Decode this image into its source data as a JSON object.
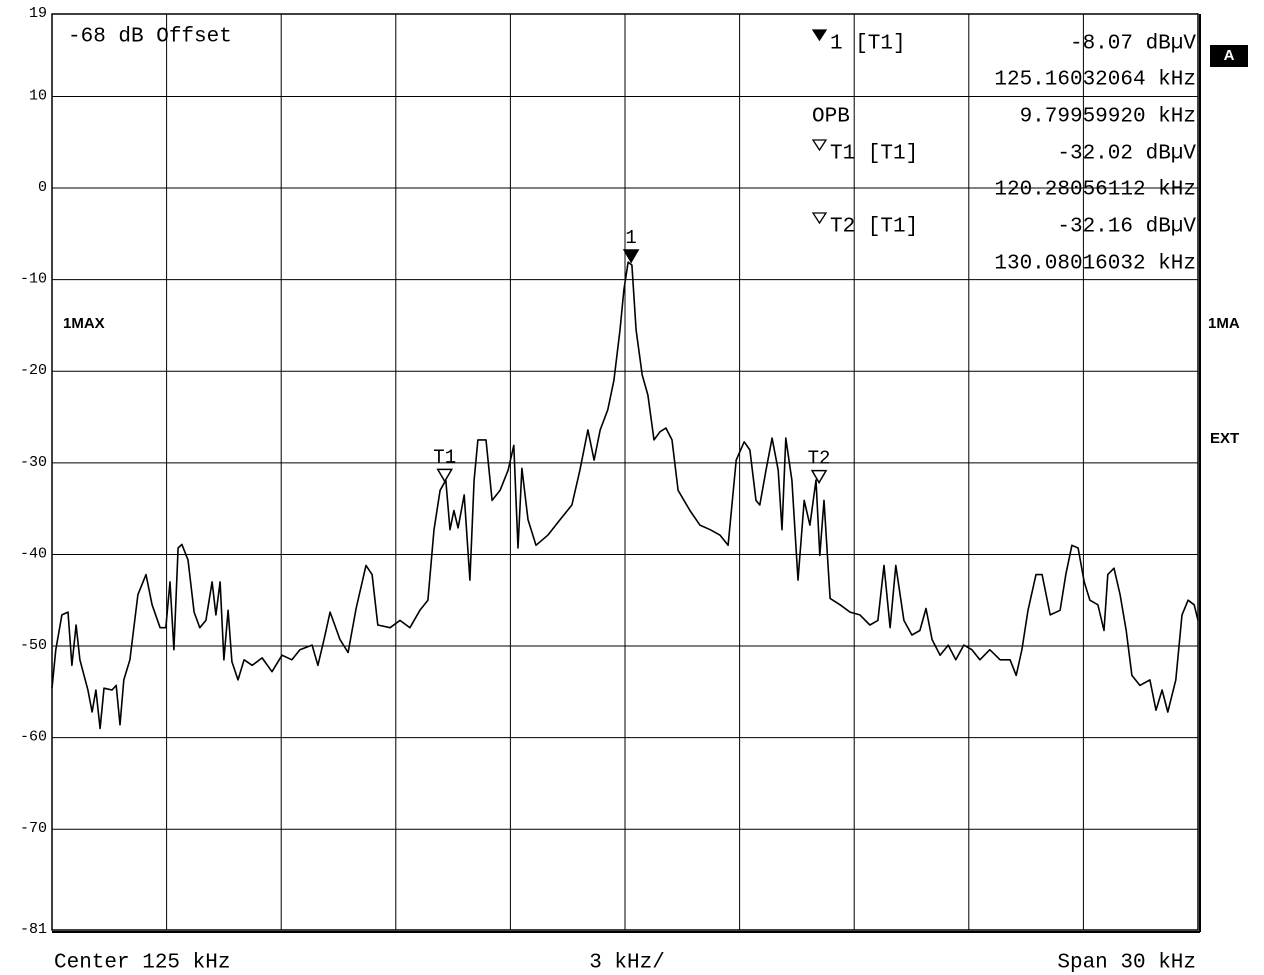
{
  "chart_data": {
    "type": "line",
    "offset_label": "-68 dB Offset",
    "side_labels": {
      "screen": "A",
      "trace_right": "1MA",
      "trigger": "EXT"
    },
    "footer": {
      "center": "Center 125 kHz",
      "division": "3 kHz/",
      "span": "Span 30 kHz"
    },
    "occupied_bandwidth": {
      "name": "OPB",
      "value_label": "9.79959920 kHz"
    },
    "xlim": [
      110,
      140
    ],
    "xticks": [
      110,
      113,
      116,
      119,
      122,
      125,
      128,
      131,
      134,
      137,
      140
    ],
    "ylim": [
      -81,
      19
    ],
    "yticks": [
      19,
      10,
      0,
      -10,
      -20,
      -30,
      -40,
      -50,
      -60,
      -70,
      -81
    ],
    "grid": true,
    "markers": [
      {
        "name": "1",
        "readout_name": "1 [T1]",
        "filled": true,
        "x": 125.16032064,
        "y": -8.07,
        "x_label": "125.16032064 kHz",
        "y_label": "-8.07 dBµV"
      },
      {
        "name": "T1",
        "readout_name": "T1 [T1]",
        "filled": false,
        "x": 120.28056112,
        "y": -32.02,
        "x_label": "120.28056112 kHz",
        "y_label": "-32.02 dBµV"
      },
      {
        "name": "T2",
        "readout_name": "T2 [T1]",
        "filled": false,
        "x": 130.08016032,
        "y": -32.16,
        "x_label": "130.08016032 kHz",
        "y_label": "-32.16 dBµV"
      }
    ],
    "x": [
      110.0,
      110.1,
      110.26,
      110.42,
      110.52,
      110.63,
      110.73,
      110.94,
      111.05,
      111.15,
      111.26,
      111.36,
      111.57,
      111.68,
      111.78,
      111.88,
      112.04,
      112.25,
      112.46,
      112.62,
      112.83,
      112.98,
      113.09,
      113.19,
      113.3,
      113.4,
      113.56,
      113.72,
      113.87,
      114.03,
      114.19,
      114.29,
      114.4,
      114.5,
      114.61,
      114.71,
      114.87,
      115.03,
      115.24,
      115.5,
      115.76,
      116.02,
      116.28,
      116.49,
      116.81,
      116.96,
      117.12,
      117.28,
      117.54,
      117.75,
      117.96,
      118.22,
      118.38,
      118.53,
      118.85,
      119.11,
      119.37,
      119.63,
      119.84,
      120.0,
      120.16,
      120.31,
      120.42,
      120.52,
      120.63,
      120.79,
      120.94,
      121.05,
      121.15,
      121.36,
      121.52,
      121.73,
      121.94,
      122.09,
      122.2,
      122.3,
      122.46,
      122.67,
      122.98,
      123.3,
      123.61,
      123.82,
      124.03,
      124.19,
      124.35,
      124.55,
      124.71,
      124.87,
      124.97,
      125.08,
      125.18,
      125.29,
      125.45,
      125.6,
      125.76,
      125.92,
      126.07,
      126.23,
      126.39,
      126.7,
      126.96,
      127.23,
      127.49,
      127.7,
      127.91,
      128.12,
      128.27,
      128.43,
      128.53,
      128.69,
      128.85,
      129.01,
      129.11,
      129.21,
      129.37,
      129.53,
      129.69,
      129.84,
      130.0,
      130.1,
      130.21,
      130.37,
      130.63,
      130.89,
      131.15,
      131.41,
      131.62,
      131.78,
      131.94,
      132.09,
      132.3,
      132.51,
      132.72,
      132.88,
      133.04,
      133.25,
      133.46,
      133.66,
      133.87,
      134.08,
      134.29,
      134.55,
      134.82,
      135.08,
      135.24,
      135.39,
      135.55,
      135.76,
      135.92,
      136.13,
      136.39,
      136.54,
      136.7,
      136.86,
      137.02,
      137.17,
      137.38,
      137.54,
      137.64,
      137.8,
      137.96,
      138.12,
      138.27,
      138.48,
      138.74,
      138.9,
      139.06,
      139.21,
      139.42,
      139.58,
      139.74,
      139.9,
      140.0
    ],
    "series": [
      {
        "name": "1MAX",
        "color": "#000000",
        "values": [
          -54.6,
          -50.4,
          -46.6,
          -46.3,
          -52.1,
          -47.7,
          -51.5,
          -54.8,
          -57.2,
          -54.8,
          -59.0,
          -54.6,
          -54.8,
          -54.3,
          -58.6,
          -53.7,
          -51.5,
          -44.4,
          -42.2,
          -45.5,
          -48.0,
          -48.0,
          -43.0,
          -50.4,
          -39.3,
          -38.9,
          -40.6,
          -46.3,
          -48.0,
          -47.2,
          -43.0,
          -46.6,
          -43.0,
          -51.5,
          -46.1,
          -51.7,
          -53.7,
          -51.5,
          -52.1,
          -51.3,
          -52.8,
          -51.0,
          -51.5,
          -50.4,
          -49.9,
          -52.1,
          -49.3,
          -46.3,
          -49.3,
          -50.7,
          -45.9,
          -41.2,
          -42.2,
          -47.7,
          -48.0,
          -47.2,
          -48.0,
          -46.1,
          -45.0,
          -37.3,
          -33.0,
          -31.9,
          -37.3,
          -35.2,
          -37.1,
          -33.5,
          -42.8,
          -31.9,
          -27.5,
          -27.5,
          -34.1,
          -33.0,
          -30.8,
          -28.1,
          -39.3,
          -30.6,
          -36.2,
          -39.0,
          -37.9,
          -36.2,
          -34.6,
          -30.8,
          -26.4,
          -29.7,
          -26.4,
          -24.2,
          -21.0,
          -15.5,
          -11.1,
          -8.1,
          -8.4,
          -15.5,
          -20.4,
          -22.6,
          -27.5,
          -26.6,
          -26.2,
          -27.5,
          -33.0,
          -35.2,
          -36.8,
          -37.3,
          -37.9,
          -39.0,
          -29.7,
          -27.7,
          -28.6,
          -34.1,
          -34.6,
          -30.8,
          -27.3,
          -30.8,
          -37.3,
          -27.3,
          -31.9,
          -42.8,
          -34.1,
          -36.8,
          -31.9,
          -40.1,
          -34.1,
          -44.8,
          -45.5,
          -46.3,
          -46.6,
          -47.7,
          -47.2,
          -41.2,
          -48.0,
          -41.2,
          -47.2,
          -48.8,
          -48.3,
          -45.9,
          -49.3,
          -51.0,
          -49.9,
          -51.5,
          -49.9,
          -50.4,
          -51.5,
          -50.4,
          -51.5,
          -51.5,
          -53.2,
          -50.4,
          -46.1,
          -42.2,
          -42.2,
          -46.6,
          -46.1,
          -42.2,
          -39.0,
          -39.3,
          -43.0,
          -45.0,
          -45.5,
          -48.3,
          -42.2,
          -41.5,
          -44.4,
          -48.3,
          -53.2,
          -54.3,
          -53.7,
          -57.0,
          -54.8,
          -57.2,
          -53.7,
          -46.6,
          -45.0,
          -45.5,
          -47.2
        ]
      }
    ]
  }
}
